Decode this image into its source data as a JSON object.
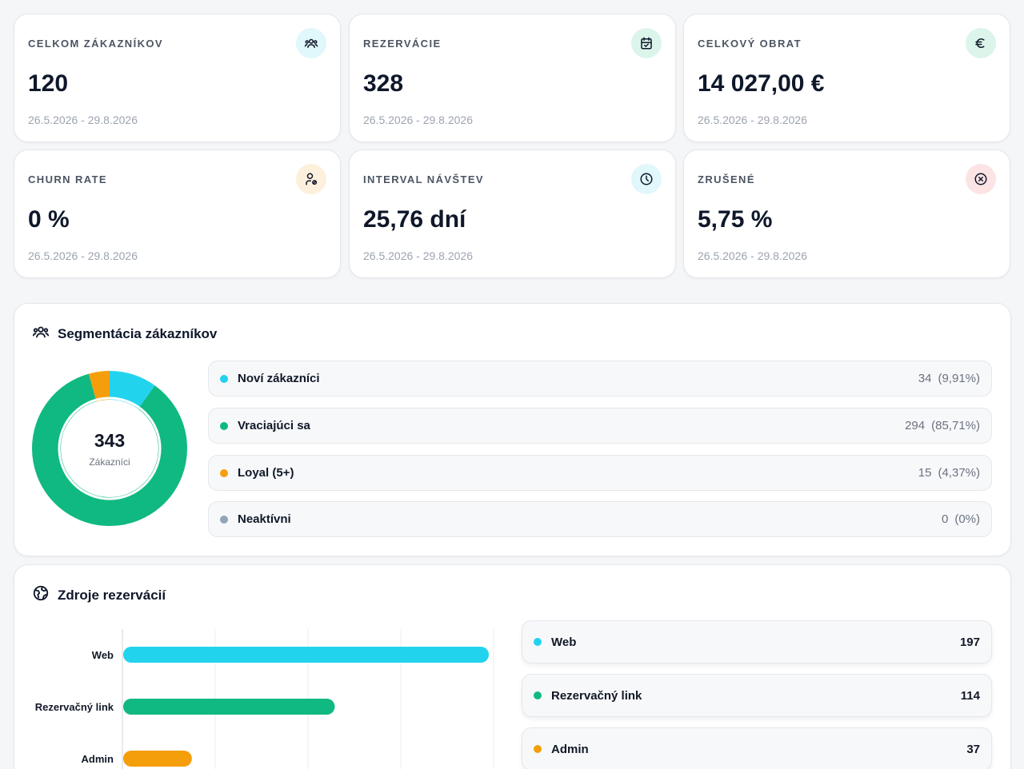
{
  "stats": [
    {
      "label": "CELKOM ZÁKAZNÍKOV",
      "value": "120",
      "range": "26.5.2026 - 29.8.2026",
      "icon": "users-icon",
      "icon_bg": "#e0f7fb",
      "icon_color": "#0f172a"
    },
    {
      "label": "REZERVÁCIE",
      "value": "328",
      "range": "26.5.2026 - 29.8.2026",
      "icon": "calendar-check-icon",
      "icon_bg": "#dcf5ea",
      "icon_color": "#0f172a"
    },
    {
      "label": "CELKOVÝ OBRAT",
      "value": "14 027,00 €",
      "range": "26.5.2026 - 29.8.2026",
      "icon": "euro-icon",
      "icon_bg": "#dcf5ea",
      "icon_color": "#0f172a"
    },
    {
      "label": "CHURN RATE",
      "value": "0 %",
      "range": "26.5.2026 - 29.8.2026",
      "icon": "user-off-icon",
      "icon_bg": "#fdf0dc",
      "icon_color": "#0f172a"
    },
    {
      "label": "INTERVAL NÁVŠTEV",
      "value": "25,76 dní",
      "range": "26.5.2026 - 29.8.2026",
      "icon": "clock-icon",
      "icon_bg": "#e0f7fb",
      "icon_color": "#0f172a"
    },
    {
      "label": "ZRUŠENÉ",
      "value": "5,75 %",
      "range": "26.5.2026 - 29.8.2026",
      "icon": "x-circle-icon",
      "icon_bg": "#fde4e4",
      "icon_color": "#0f172a"
    }
  ],
  "segmentation": {
    "title": "Segmentácia zákazníkov",
    "icon": "users-icon",
    "total": "343",
    "total_label": "Zákazníci",
    "segments": [
      {
        "name": "Noví zákazníci",
        "count": "34",
        "pct": "(9,91%)",
        "value": 34,
        "color": "#22d3ee"
      },
      {
        "name": "Vraciajúci sa",
        "count": "294",
        "pct": "(85,71%)",
        "value": 294,
        "color": "#10b981"
      },
      {
        "name": "Loyal (5+)",
        "count": "15",
        "pct": "(4,37%)",
        "value": 15,
        "color": "#f59e0b"
      },
      {
        "name": "Neaktívni",
        "count": "0",
        "pct": "(0%)",
        "value": 0,
        "color": "#94a3b8"
      }
    ]
  },
  "sources": {
    "title": "Zdroje rezervácií",
    "icon": "globe-icon",
    "items": [
      {
        "name": "Web",
        "count": "197",
        "color": "#22d3ee"
      },
      {
        "name": "Rezervačný link",
        "count": "114",
        "color": "#10b981"
      },
      {
        "name": "Admin",
        "count": "37",
        "color": "#f59e0b"
      }
    ]
  },
  "chart_data": [
    {
      "type": "pie",
      "categories": [
        "Noví zákazníci",
        "Vraciajúci sa",
        "Loyal (5+)",
        "Neaktívni"
      ],
      "values": [
        34,
        294,
        15,
        0
      ],
      "colors": [
        "#22d3ee",
        "#10b981",
        "#f59e0b",
        "#94a3b8"
      ],
      "title": "Segmentácia zákazníkov"
    },
    {
      "type": "bar",
      "orientation": "horizontal",
      "categories": [
        "Web",
        "Rezervačný link",
        "Admin"
      ],
      "values": [
        197,
        114,
        37
      ],
      "colors": [
        "#22d3ee",
        "#10b981",
        "#f59e0b"
      ],
      "title": "Zdroje rezervácií",
      "xlim": [
        0,
        200
      ],
      "grid": true
    }
  ]
}
